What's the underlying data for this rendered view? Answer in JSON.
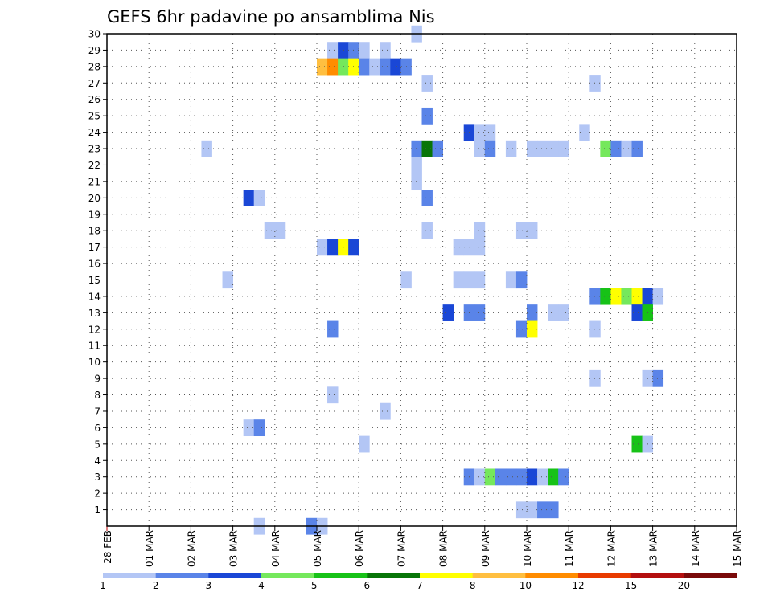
{
  "chart_data": {
    "type": "heatmap",
    "title": "GEFS 6hr padavine po ansamblima Nis",
    "xlabel": "",
    "ylabel": "",
    "x_start": "2016-02-28 00:00",
    "x_step_hours": 6,
    "x_ticks": [
      "28 FEB",
      "01 MAR",
      "02 MAR",
      "03 MAR",
      "04 MAR",
      "05 MAR",
      "06 MAR",
      "07 MAR",
      "08 MAR",
      "09 MAR",
      "10 MAR",
      "11 MAR",
      "12 MAR",
      "13 MAR",
      "14 MAR",
      "15 MAR"
    ],
    "y_ticks": [
      1,
      2,
      3,
      4,
      5,
      6,
      7,
      8,
      9,
      10,
      11,
      12,
      13,
      14,
      15,
      16,
      17,
      18,
      19,
      20,
      21,
      22,
      23,
      24,
      25,
      26,
      27,
      28,
      29,
      30
    ],
    "ylim": [
      0,
      30
    ],
    "grid": true,
    "colorbar": {
      "levels": [
        "1",
        "2",
        "3",
        "4",
        "5",
        "6",
        "7",
        "8",
        "10",
        "12",
        "15",
        "20"
      ],
      "colors": [
        "#b3c6f5",
        "#5a84e8",
        "#1a47d6",
        "#75e85c",
        "#17c217",
        "#087508",
        "#ffff00",
        "#ffbf40",
        "#ff8c00",
        "#e83b00",
        "#b40f0f",
        "#7a0a0a"
      ]
    },
    "cells": [
      [
        29,
        30,
        1
      ],
      [
        21,
        29,
        1
      ],
      [
        22,
        29,
        3
      ],
      [
        23,
        29,
        2
      ],
      [
        24,
        29,
        1
      ],
      [
        26,
        29,
        1
      ],
      [
        20,
        28,
        8
      ],
      [
        21,
        28,
        9
      ],
      [
        22,
        28,
        4
      ],
      [
        23,
        28,
        7
      ],
      [
        24,
        28,
        2
      ],
      [
        25,
        28,
        1
      ],
      [
        26,
        28,
        2
      ],
      [
        27,
        28,
        3
      ],
      [
        28,
        28,
        2
      ],
      [
        30,
        27,
        1
      ],
      [
        46,
        27,
        1
      ],
      [
        30,
        25,
        2
      ],
      [
        34,
        24,
        3
      ],
      [
        35,
        24,
        1
      ],
      [
        36,
        24,
        1
      ],
      [
        45,
        24,
        1
      ],
      [
        9,
        23,
        1
      ],
      [
        29,
        23,
        2
      ],
      [
        30,
        23,
        6
      ],
      [
        31,
        23,
        2
      ],
      [
        35,
        23,
        1
      ],
      [
        36,
        23,
        2
      ],
      [
        38,
        23,
        1
      ],
      [
        40,
        23,
        1
      ],
      [
        41,
        23,
        1
      ],
      [
        42,
        23,
        1
      ],
      [
        43,
        23,
        1
      ],
      [
        47,
        23,
        4
      ],
      [
        48,
        23,
        2
      ],
      [
        49,
        23,
        1
      ],
      [
        50,
        23,
        2
      ],
      [
        29,
        22,
        1
      ],
      [
        29,
        21,
        1
      ],
      [
        13,
        20,
        3
      ],
      [
        14,
        20,
        1
      ],
      [
        30,
        20,
        2
      ],
      [
        15,
        18,
        1
      ],
      [
        16,
        18,
        1
      ],
      [
        30,
        18,
        1
      ],
      [
        35,
        18,
        1
      ],
      [
        39,
        18,
        1
      ],
      [
        40,
        18,
        1
      ],
      [
        20,
        17,
        1
      ],
      [
        21,
        17,
        3
      ],
      [
        22,
        17,
        7
      ],
      [
        23,
        17,
        3
      ],
      [
        33,
        17,
        1
      ],
      [
        34,
        17,
        1
      ],
      [
        35,
        17,
        1
      ],
      [
        11,
        15,
        1
      ],
      [
        28,
        15,
        1
      ],
      [
        33,
        15,
        1
      ],
      [
        34,
        15,
        1
      ],
      [
        35,
        15,
        1
      ],
      [
        38,
        15,
        1
      ],
      [
        39,
        15,
        2
      ],
      [
        46,
        14,
        2
      ],
      [
        47,
        14,
        5
      ],
      [
        48,
        14,
        7
      ],
      [
        49,
        14,
        4
      ],
      [
        50,
        14,
        7
      ],
      [
        51,
        14,
        3
      ],
      [
        52,
        14,
        1
      ],
      [
        32,
        13,
        3
      ],
      [
        34,
        13,
        2
      ],
      [
        35,
        13,
        2
      ],
      [
        40,
        13,
        2
      ],
      [
        42,
        13,
        1
      ],
      [
        43,
        13,
        1
      ],
      [
        50,
        13,
        3
      ],
      [
        51,
        13,
        5
      ],
      [
        21,
        12,
        2
      ],
      [
        39,
        12,
        2
      ],
      [
        40,
        12,
        7
      ],
      [
        46,
        12,
        1
      ],
      [
        46,
        9,
        1
      ],
      [
        51,
        9,
        1
      ],
      [
        52,
        9,
        2
      ],
      [
        21,
        8,
        1
      ],
      [
        26,
        7,
        1
      ],
      [
        13,
        6,
        1
      ],
      [
        14,
        6,
        2
      ],
      [
        24,
        5,
        1
      ],
      [
        50,
        5,
        5
      ],
      [
        51,
        5,
        1
      ],
      [
        34,
        3,
        2
      ],
      [
        35,
        3,
        1
      ],
      [
        36,
        3,
        4
      ],
      [
        37,
        3,
        2
      ],
      [
        38,
        3,
        2
      ],
      [
        39,
        3,
        2
      ],
      [
        40,
        3,
        3
      ],
      [
        41,
        3,
        1
      ],
      [
        42,
        3,
        5
      ],
      [
        43,
        3,
        2
      ],
      [
        39,
        1,
        1
      ],
      [
        40,
        1,
        1
      ],
      [
        41,
        1,
        2
      ],
      [
        42,
        1,
        2
      ],
      [
        14,
        0,
        1
      ],
      [
        19,
        0,
        2
      ],
      [
        20,
        0,
        1
      ]
    ]
  }
}
